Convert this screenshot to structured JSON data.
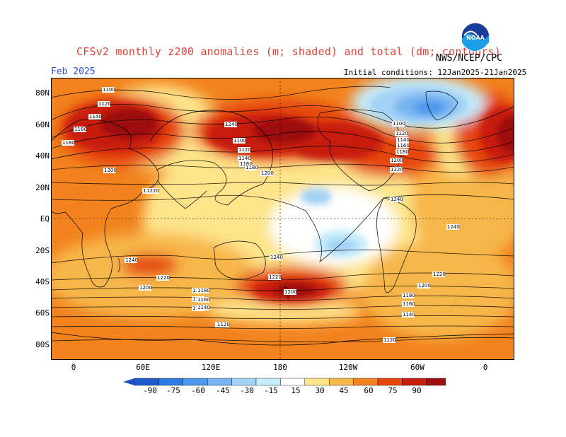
{
  "header": {
    "title": "CFSv2 monthly z200 anomalies (m; shaded) and total (dm; contours)",
    "agency": "NWS/NCEP/CPC",
    "period": "Feb 2025",
    "initial_conditions": "Initial conditions: 12Jan2025-21Jan2025",
    "logo_text": "NOAA"
  },
  "map": {
    "lat_labels": [
      "80N",
      "60N",
      "40N",
      "20N",
      "EQ",
      "20S",
      "40S",
      "60S",
      "80S"
    ],
    "lon_labels": [
      "0",
      "60E",
      "120E",
      "180",
      "120W",
      "60W",
      "0"
    ],
    "contour_labels": [
      "1100",
      "1120",
      "1140",
      "1160",
      "1180",
      "1200",
      "1220",
      "1240",
      "1100",
      "1120",
      "1140",
      "1160",
      "1180",
      "1200",
      "1220",
      "1240",
      "1240",
      "1100",
      "1120",
      "1140",
      "1160",
      "1180",
      "1200",
      "1220",
      "1220",
      "1200",
      "1180",
      "1160",
      "1140",
      "1120",
      "1220",
      "1200",
      "1180",
      "1160",
      "1140",
      "1120",
      "1240",
      "1240",
      "1220",
      "1200",
      "1180",
      "1160",
      "1140",
      "1120"
    ],
    "colors": {
      "ocean_bg": "#f7b64a",
      "anom_high": "#b01a12",
      "anom_low": "#1e64d6",
      "coast": "#000000"
    }
  },
  "colorbar": {
    "ticks": [
      "-90",
      "-75",
      "-60",
      "-45",
      "-30",
      "-15",
      "15",
      "30",
      "45",
      "60",
      "75",
      "90"
    ],
    "colors": [
      "#1e5ad0",
      "#2b7ae6",
      "#4c98ef",
      "#78b4f3",
      "#a3d1f6",
      "#c4ecfa",
      "#ffffff",
      "#fde48a",
      "#f7b64a",
      "#f2831e",
      "#e5460c",
      "#c71e0f",
      "#9c0f0c"
    ]
  }
}
